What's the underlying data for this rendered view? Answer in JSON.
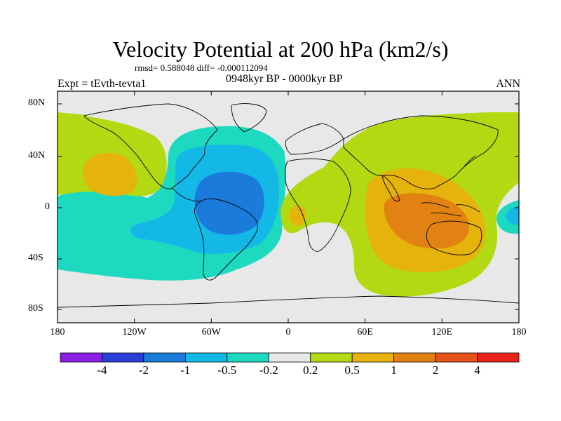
{
  "title": "Velocity Potential at 200 hPa (km2/s)",
  "stats": "rmsd= 0.588048 diff= -0.000112094",
  "expt": "Expt = tEvth-tevta1",
  "period": "0948kyr BP - 0000kyr BP",
  "season": "ANN",
  "lat_labels": [
    "80N",
    "40N",
    "0",
    "40S",
    "80S"
  ],
  "lon_labels": [
    "180",
    "120W",
    "60W",
    "0",
    "60E",
    "120E",
    "180"
  ],
  "colorbar": {
    "colors": [
      "#8b1fe6",
      "#2b3ed8",
      "#1b7bdb",
      "#14b8e6",
      "#1cd9c0",
      "#e8e8e8",
      "#b3d912",
      "#e6b20c",
      "#e28212",
      "#e5521a",
      "#e82418"
    ],
    "labels": [
      "-4",
      "-2",
      "-1",
      "-0.5",
      "-0.2",
      "0.2",
      "0.5",
      "1",
      "2",
      "4"
    ]
  },
  "field_colors": {
    "neutral": "#e8e8e8",
    "teal": "#1cd9c0",
    "cyan": "#14b8e6",
    "blue": "#1b7bdb",
    "lime": "#b3d912",
    "gold": "#e6b20c",
    "orange": "#e28212"
  }
}
